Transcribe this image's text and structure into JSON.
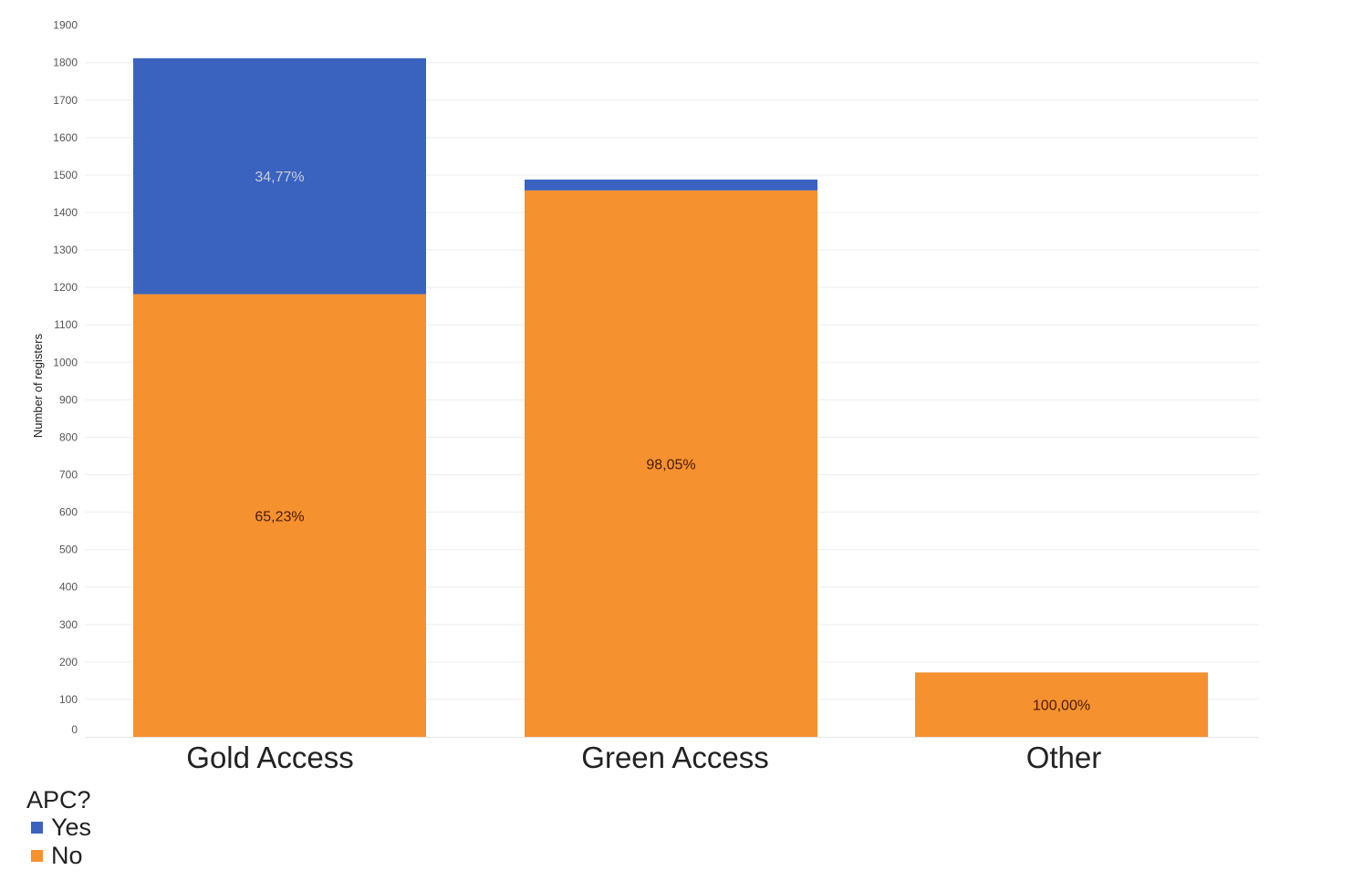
{
  "chart_data": {
    "type": "bar",
    "stacked": true,
    "categories": [
      "Gold Access",
      "Green Access",
      "Other"
    ],
    "series": [
      {
        "name": "No",
        "color": "#f5912f",
        "label_color": "#4a1a08",
        "values": [
          1182,
          1459,
          172
        ],
        "labels": [
          "65,23%",
          "98,05%",
          "100,00%"
        ]
      },
      {
        "name": "Yes",
        "color": "#3a62bf",
        "label_color": "#c9cdd8",
        "values": [
          630,
          29,
          0
        ],
        "labels": [
          "34,77%",
          "",
          ""
        ]
      }
    ],
    "ylabel": "Number of registers",
    "ylim": [
      0,
      1900
    ],
    "yticks": [
      0,
      100,
      200,
      300,
      400,
      500,
      600,
      700,
      800,
      900,
      1000,
      1100,
      1200,
      1300,
      1400,
      1500,
      1600,
      1700,
      1800,
      1900
    ],
    "grid": true,
    "grid_color": "#eeeeee",
    "legend": {
      "title": "APC?",
      "placement": "bottom-left",
      "items": [
        {
          "name": "Yes",
          "color": "#3a62bf"
        },
        {
          "name": "No",
          "color": "#f5912f"
        }
      ]
    }
  }
}
